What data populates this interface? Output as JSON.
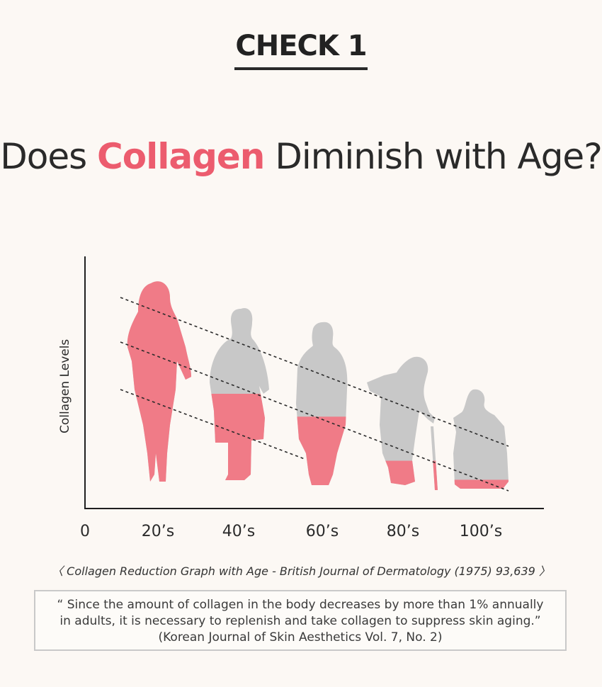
{
  "header": {
    "check_label": "CHECK 1"
  },
  "headline": {
    "prefix": "Does ",
    "accent": "Collagen",
    "suffix": " Diminish with Age?"
  },
  "colors": {
    "accent": "#ec5c6e",
    "collagen_fill": "#f07b87",
    "silhouette_grey": "#c8c8c8",
    "background": "#fcf8f4"
  },
  "chart_data": {
    "type": "figure-bar",
    "ylabel": "Collagen  Levels",
    "xlabel": "",
    "origin_label": "0",
    "categories": [
      "20’s",
      "40’s",
      "60’s",
      "80’s",
      "100’s"
    ],
    "collagen_fraction": [
      1.0,
      0.5,
      0.42,
      0.22,
      0.1
    ],
    "silhouettes": [
      "young-woman-standing",
      "woman-in-cloak",
      "elderly-woman-standing",
      "elderly-woman-with-cane",
      "person-in-wheelchair"
    ],
    "trend_lines": 3,
    "trend_line_style": "dashed"
  },
  "source": "〈 Collagen Reduction Graph with Age -  British Journal of Dermatology (1975) 93,639 〉",
  "quote": {
    "line1": "“ Since the amount of collagen in the body decreases by more than 1% annually",
    "line2": "in adults, it is necessary to replenish and take collagen to suppress skin aging.”",
    "line3": "(Korean Journal of Skin Aesthetics Vol. 7, No. 2)"
  }
}
